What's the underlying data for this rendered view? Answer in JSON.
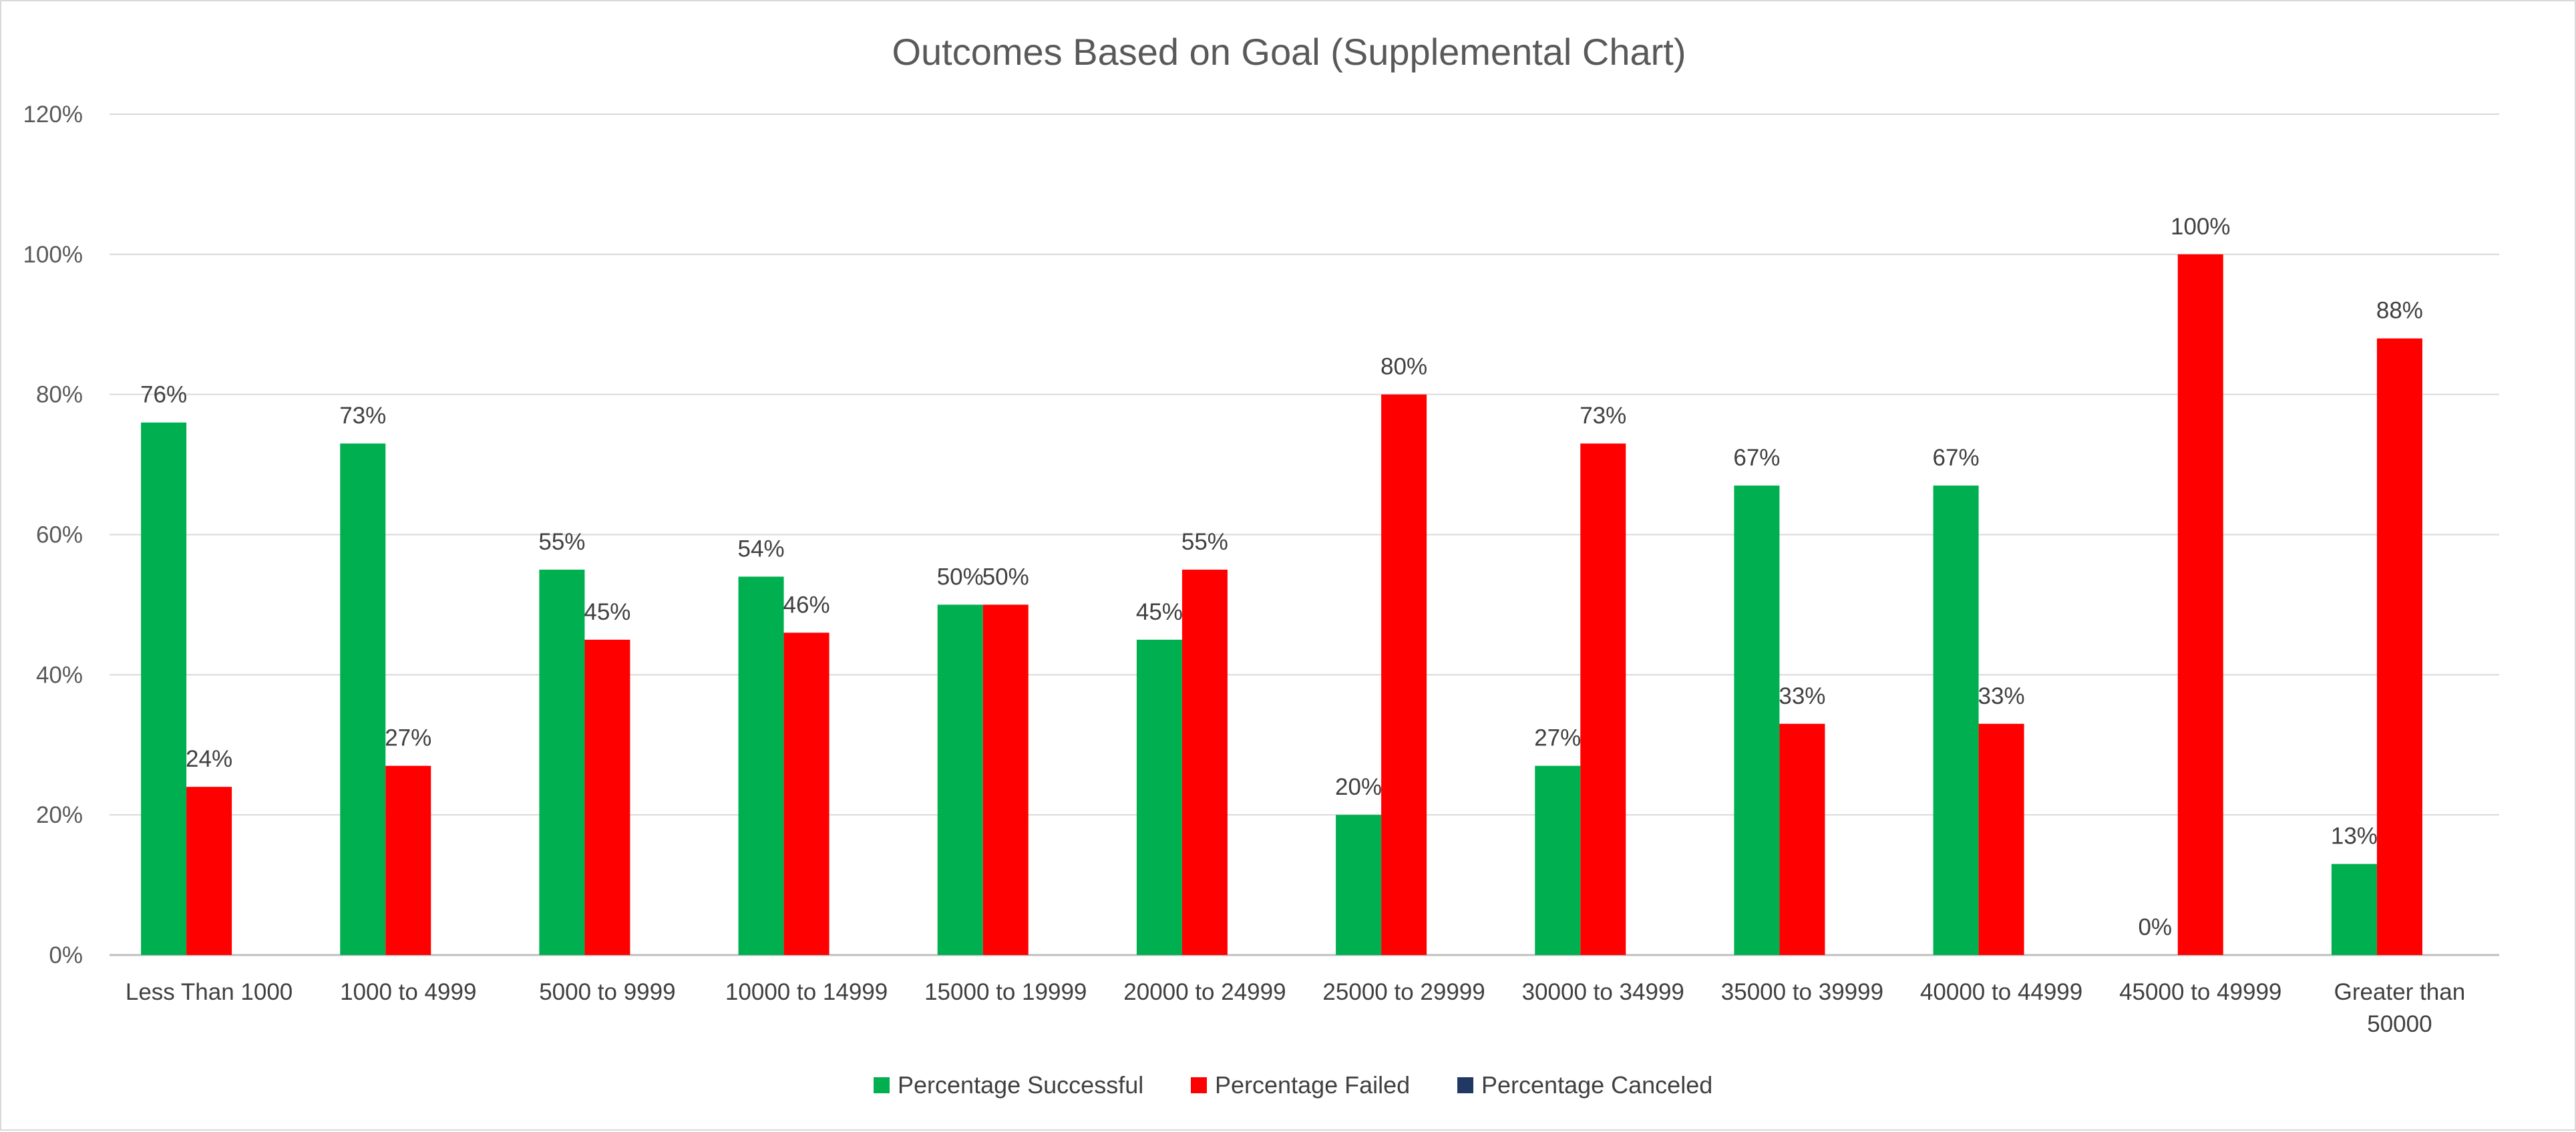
{
  "chart_data": {
    "type": "bar",
    "title": "Outcomes Based on Goal (Supplemental Chart)",
    "categories": [
      "Less Than 1000",
      "1000 to 4999",
      "5000 to 9999",
      "10000 to 14999",
      "15000 to 19999",
      "20000 to 24999",
      "25000 to 29999",
      "30000 to 34999",
      "35000 to 39999",
      "40000 to 44999",
      "45000 to 49999",
      [
        "Greater than",
        "50000"
      ]
    ],
    "series": [
      {
        "name": "Percentage Successful",
        "color": "#00b050",
        "values": [
          76,
          73,
          55,
          54,
          50,
          45,
          20,
          27,
          67,
          67,
          0,
          13
        ],
        "labels": [
          "76%",
          "73%",
          "55%",
          "54%",
          "50%",
          "45%",
          "20%",
          "27%",
          "67%",
          "67%",
          "0%",
          "13%"
        ]
      },
      {
        "name": "Percentage Failed",
        "color": "#ff0000",
        "values": [
          24,
          27,
          45,
          46,
          50,
          55,
          80,
          73,
          33,
          33,
          100,
          88
        ],
        "labels": [
          "24%",
          "27%",
          "45%",
          "46%",
          "50%",
          "55%",
          "80%",
          "73%",
          "33%",
          "33%",
          "100%",
          "88%"
        ]
      },
      {
        "name": "Percentage Canceled",
        "color": "#203864",
        "values": [
          0,
          0,
          0,
          0,
          0,
          0,
          0,
          0,
          0,
          0,
          0,
          0
        ],
        "labels": []
      }
    ],
    "yticks": [
      0,
      20,
      40,
      60,
      80,
      100,
      120
    ],
    "ytick_labels": [
      "0%",
      "20%",
      "40%",
      "60%",
      "80%",
      "100%",
      "120%"
    ],
    "ylim": [
      0,
      120
    ],
    "grid": true,
    "legend_position": "bottom"
  }
}
